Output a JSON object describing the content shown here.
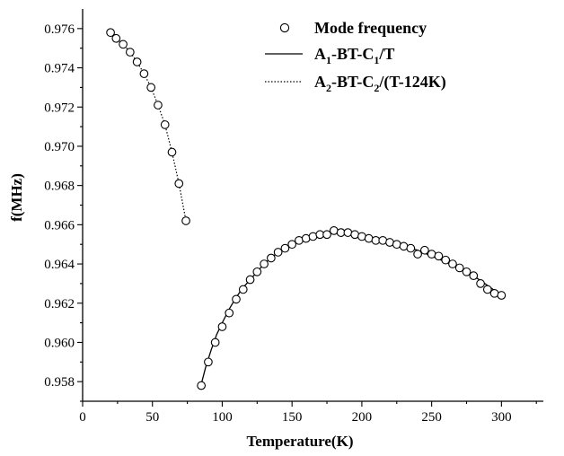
{
  "chart_data": {
    "type": "scatter",
    "xlabel": "Temperature(K)",
    "ylabel": "f(MHz)",
    "xlim": [
      0,
      330
    ],
    "ylim": [
      0.957,
      0.977
    ],
    "x_ticks": [
      "0",
      "50",
      "100",
      "150",
      "200",
      "250",
      "300"
    ],
    "y_ticks": [
      "0.958",
      "0.960",
      "0.962",
      "0.964",
      "0.966",
      "0.968",
      "0.970",
      "0.972",
      "0.974",
      "0.976"
    ],
    "legend": {
      "position": "top-right",
      "entries": [
        {
          "marker": "open-circle",
          "parts": [
            [
              "Mode frequency",
              ""
            ]
          ]
        },
        {
          "marker": "solid-line",
          "parts": [
            [
              "A",
              ""
            ],
            [
              "1",
              "sub"
            ],
            [
              "-BT-C",
              ""
            ],
            [
              "1",
              "sub"
            ],
            [
              "/T",
              ""
            ]
          ]
        },
        {
          "marker": "dotted-line",
          "parts": [
            [
              "A",
              ""
            ],
            [
              "2",
              "sub"
            ],
            [
              "-BT-C",
              ""
            ],
            [
              "2",
              "sub"
            ],
            [
              "/(T-124K)",
              ""
            ]
          ]
        }
      ]
    },
    "series": [
      {
        "name": "Mode frequency",
        "kind": "markers",
        "x": [
          20,
          24,
          29,
          34,
          39,
          44,
          49,
          54,
          59,
          64,
          69,
          74,
          85,
          90,
          95,
          100,
          105,
          110,
          115,
          120,
          125,
          130,
          135,
          140,
          145,
          150,
          155,
          160,
          165,
          170,
          175,
          180,
          185,
          190,
          195,
          200,
          205,
          210,
          215,
          220,
          225,
          230,
          235,
          240,
          245,
          250,
          255,
          260,
          265,
          270,
          275,
          280,
          285,
          290,
          295,
          300
        ],
        "y": [
          0.9758,
          0.9755,
          0.9752,
          0.9748,
          0.9743,
          0.9737,
          0.973,
          0.9721,
          0.9711,
          0.9697,
          0.9681,
          0.9662,
          0.9578,
          0.959,
          0.96,
          0.9608,
          0.9615,
          0.9622,
          0.9627,
          0.9632,
          0.9636,
          0.964,
          0.9643,
          0.9646,
          0.9648,
          0.965,
          0.9652,
          0.9653,
          0.9654,
          0.9655,
          0.9655,
          0.9657,
          0.9656,
          0.9656,
          0.9655,
          0.9654,
          0.9653,
          0.9652,
          0.9652,
          0.9651,
          0.965,
          0.9649,
          0.9648,
          0.9645,
          0.9647,
          0.9645,
          0.9644,
          0.9642,
          0.964,
          0.9638,
          0.9636,
          0.9634,
          0.963,
          0.9627,
          0.9625,
          0.9624
        ]
      },
      {
        "name": "A1-BT-C1/T",
        "kind": "solid",
        "x": [
          84,
          88,
          92,
          96,
          100,
          105,
          110,
          115,
          120,
          130,
          140,
          150,
          160,
          170,
          180,
          190,
          200,
          210,
          220,
          230,
          240,
          250,
          260,
          270,
          280,
          290,
          300
        ],
        "y": [
          0.9576,
          0.9587,
          0.9596,
          0.9604,
          0.961,
          0.9617,
          0.9623,
          0.9628,
          0.9632,
          0.964,
          0.9646,
          0.965,
          0.9653,
          0.9655,
          0.9656,
          0.9656,
          0.9655,
          0.9653,
          0.9651,
          0.9649,
          0.9647,
          0.9644,
          0.9641,
          0.9638,
          0.9634,
          0.9629,
          0.9624
        ]
      },
      {
        "name": "A2-BT-C2/(T-124K)",
        "kind": "dotted",
        "x": [
          20,
          24,
          29,
          34,
          39,
          44,
          49,
          54,
          59,
          64,
          69,
          74
        ],
        "y": [
          0.9758,
          0.9755,
          0.9752,
          0.9748,
          0.9743,
          0.9737,
          0.973,
          0.9721,
          0.9711,
          0.9697,
          0.9681,
          0.9662
        ]
      }
    ]
  }
}
